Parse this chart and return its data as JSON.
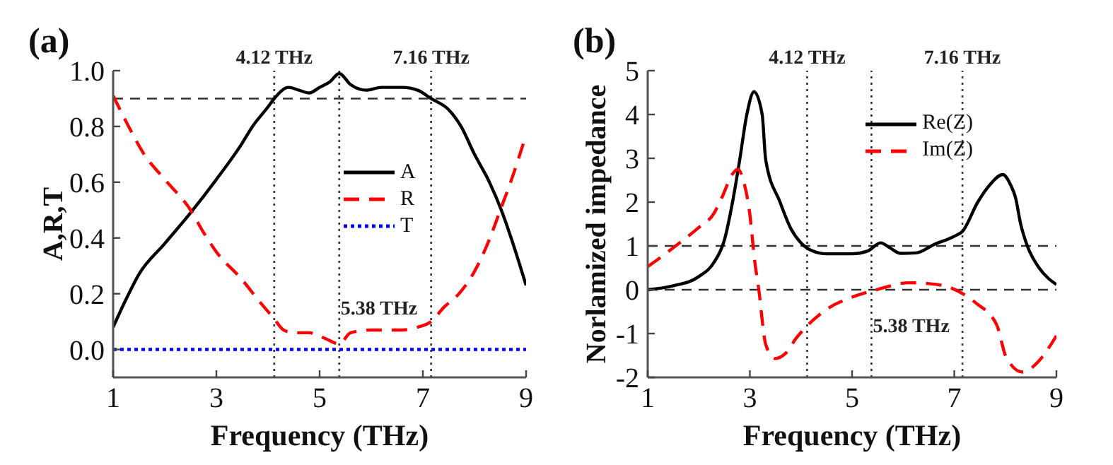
{
  "chart_data": [
    {
      "type": "line",
      "title": "(a)",
      "xlabel": "Frequency (THz)",
      "ylabel": "A,R,T",
      "xlim": [
        1,
        9
      ],
      "xticks": [
        1,
        3,
        5,
        7,
        9
      ],
      "ylim": [
        -0.1,
        1.0
      ],
      "yticks": [
        {
          "value": 0,
          "label": "0.0"
        },
        0.2,
        0.4,
        0.6,
        0.8,
        {
          "value": 1,
          "label": "1.0"
        }
      ],
      "legend": "center",
      "series": [
        {
          "name": "A",
          "color": "#000000",
          "line_style": "solid",
          "x": [
            1,
            1.25,
            1.5,
            2,
            2.5,
            3,
            3.5,
            3.7,
            4,
            4.12,
            4.4,
            4.6,
            4.8,
            5,
            5.2,
            5.38,
            5.6,
            5.9,
            6.2,
            6.6,
            6.9,
            7.16,
            7.5,
            7.74,
            8.0,
            8.29,
            8.52,
            8.71,
            8.85,
            9
          ],
          "values": [
            0.08,
            0.18,
            0.27,
            0.38,
            0.49,
            0.61,
            0.74,
            0.8,
            0.87,
            0.9,
            0.94,
            0.93,
            0.92,
            0.94,
            0.96,
            0.99,
            0.95,
            0.93,
            0.94,
            0.94,
            0.93,
            0.9,
            0.86,
            0.8,
            0.7,
            0.6,
            0.5,
            0.4,
            0.32,
            0.23
          ]
        },
        {
          "name": "R",
          "color": "#ff0000",
          "line_style": "dashed",
          "x": [
            1,
            1.3,
            1.6,
            2,
            2.5,
            2.75,
            3,
            3.5,
            3.8,
            4.12,
            4.3,
            4.5,
            4.8,
            5.1,
            5.38,
            5.6,
            6,
            6.6,
            6.9,
            7.16,
            7.4,
            7.7,
            8,
            8.3,
            8.5,
            8.7,
            9
          ],
          "values": [
            0.91,
            0.8,
            0.7,
            0.61,
            0.5,
            0.42,
            0.35,
            0.25,
            0.18,
            0.11,
            0.07,
            0.06,
            0.06,
            0.04,
            0.02,
            0.06,
            0.07,
            0.07,
            0.08,
            0.1,
            0.15,
            0.2,
            0.28,
            0.4,
            0.5,
            0.6,
            0.77
          ]
        },
        {
          "name": "T",
          "color": "#0000ff",
          "line_style": "dotted",
          "x": [
            1,
            9
          ],
          "values": [
            0,
            0
          ]
        }
      ],
      "ref_lines": [
        {
          "axis": "y",
          "value": 0.9,
          "color": "#333333",
          "line_style": "dashed"
        },
        {
          "axis": "x",
          "value": 4.12,
          "color": "#333333",
          "line_style": "dotted"
        },
        {
          "axis": "x",
          "value": 5.38,
          "color": "#333333",
          "line_style": "dotted"
        },
        {
          "axis": "x",
          "value": 7.16,
          "color": "#333333",
          "line_style": "dotted"
        }
      ],
      "annotations": [
        {
          "text": "4.12 THz",
          "x": 4.12,
          "y": 1.0
        },
        {
          "text": "7.16 THz",
          "x": 7.16,
          "y": 1.0
        },
        {
          "text": "5.38 THz",
          "x": 5.38,
          "y": 0.15
        }
      ]
    },
    {
      "type": "line",
      "title": "(b)",
      "xlabel": "Frequency (THz)",
      "ylabel": "Norlamized impedance",
      "xlim": [
        1,
        9
      ],
      "xticks": [
        1,
        3,
        5,
        7,
        9
      ],
      "ylim": [
        -2,
        5
      ],
      "yticks": [
        -2,
        -1,
        0,
        1,
        2,
        3,
        4,
        5
      ],
      "legend": "top",
      "series": [
        {
          "name": "Re(Z)",
          "color": "#000000",
          "line_style": "solid",
          "x": [
            1,
            1.5,
            2,
            2.3,
            2.5,
            2.66,
            2.8,
            2.94,
            3.08,
            3.24,
            3.31,
            3.59,
            3.8,
            4.0,
            4.2,
            4.5,
            5.0,
            5.3,
            5.56,
            5.75,
            5.95,
            6.25,
            6.6,
            7.0,
            7.16,
            7.46,
            7.7,
            7.95,
            8.1,
            8.2,
            8.3,
            8.43,
            8.66,
            8.85,
            9
          ],
          "values": [
            0,
            0.09,
            0.3,
            0.63,
            1.13,
            2.0,
            2.96,
            4.0,
            4.52,
            4.0,
            2.96,
            2.0,
            1.4,
            1.07,
            0.9,
            0.82,
            0.82,
            0.88,
            1.07,
            0.95,
            0.83,
            0.84,
            1.03,
            1.22,
            1.33,
            2.0,
            2.4,
            2.63,
            2.4,
            2.1,
            1.5,
            1.0,
            0.5,
            0.25,
            0.12
          ]
        },
        {
          "name": "Im(Z)",
          "color": "#ff0000",
          "line_style": "dashed",
          "x": [
            1,
            1.3,
            1.6,
            2.0,
            2.3,
            2.45,
            2.66,
            2.76,
            2.89,
            2.99,
            3.1,
            3.17,
            3.31,
            3.49,
            3.7,
            3.91,
            4.14,
            4.46,
            5.02,
            5.48,
            6.12,
            6.5,
            6.96,
            7.42,
            7.83,
            8.02,
            8.34,
            8.62,
            9
          ],
          "values": [
            0.53,
            0.78,
            1.05,
            1.42,
            1.75,
            2.1,
            2.64,
            2.75,
            2.42,
            1.8,
            0.6,
            0.04,
            -1.25,
            -1.57,
            -1.45,
            -1.1,
            -0.8,
            -0.48,
            -0.16,
            0.0,
            0.16,
            0.14,
            0.03,
            -0.3,
            -0.8,
            -1.55,
            -1.88,
            -1.67,
            -1.05
          ]
        }
      ],
      "ref_lines": [
        {
          "axis": "y",
          "value": 1,
          "color": "#333333",
          "line_style": "dashed"
        },
        {
          "axis": "y",
          "value": 0,
          "color": "#333333",
          "line_style": "dashed"
        },
        {
          "axis": "x",
          "value": 4.12,
          "color": "#333333",
          "line_style": "dotted"
        },
        {
          "axis": "x",
          "value": 5.38,
          "color": "#333333",
          "line_style": "dotted"
        },
        {
          "axis": "x",
          "value": 7.16,
          "color": "#333333",
          "line_style": "dotted"
        }
      ],
      "annotations": [
        {
          "text": "4.12 THz",
          "x": 4.12,
          "y": 5
        },
        {
          "text": "7.16 THz",
          "x": 7.16,
          "y": 5
        },
        {
          "text": "5.38 THz",
          "x": 5.38,
          "y": -0.8
        }
      ]
    }
  ]
}
